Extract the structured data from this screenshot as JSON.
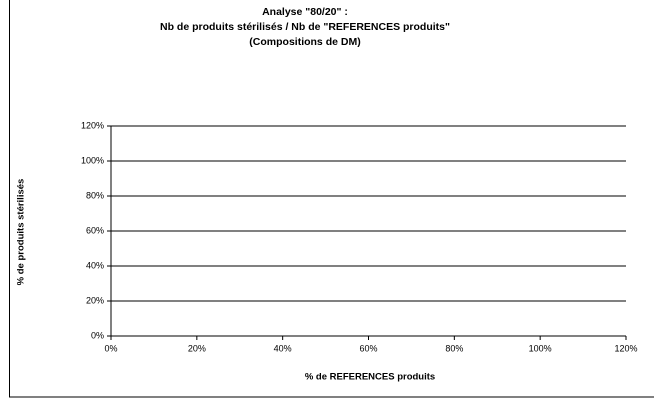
{
  "chart_data": {
    "type": "scatter",
    "title": [
      "Analyse \"80/20\" :",
      "Nb de produits stérilisés / Nb de \"REFERENCES produits\"",
      "(Compositions de DM)"
    ],
    "x_label": "% de REFERENCES produits",
    "y_label": "% de produits stérilisés",
    "xlim": [
      0,
      120
    ],
    "xticks": [
      {
        "value": 0,
        "label": "0%"
      },
      {
        "value": 20,
        "label": "20%"
      },
      {
        "value": 40,
        "label": "40%"
      },
      {
        "value": 60,
        "label": "60%"
      },
      {
        "value": 80,
        "label": "80%"
      },
      {
        "value": 100,
        "label": "100%"
      },
      {
        "value": 120,
        "label": "120%"
      }
    ],
    "ylim": [
      0,
      120
    ],
    "yticks": [
      {
        "value": 0,
        "label": "0%"
      },
      {
        "value": 20,
        "label": "20%"
      },
      {
        "value": 40,
        "label": "40%"
      },
      {
        "value": 60,
        "label": "60%"
      },
      {
        "value": 80,
        "label": "80%"
      },
      {
        "value": 100,
        "label": "100%"
      },
      {
        "value": 120,
        "label": "120%"
      }
    ],
    "grid": true
  }
}
